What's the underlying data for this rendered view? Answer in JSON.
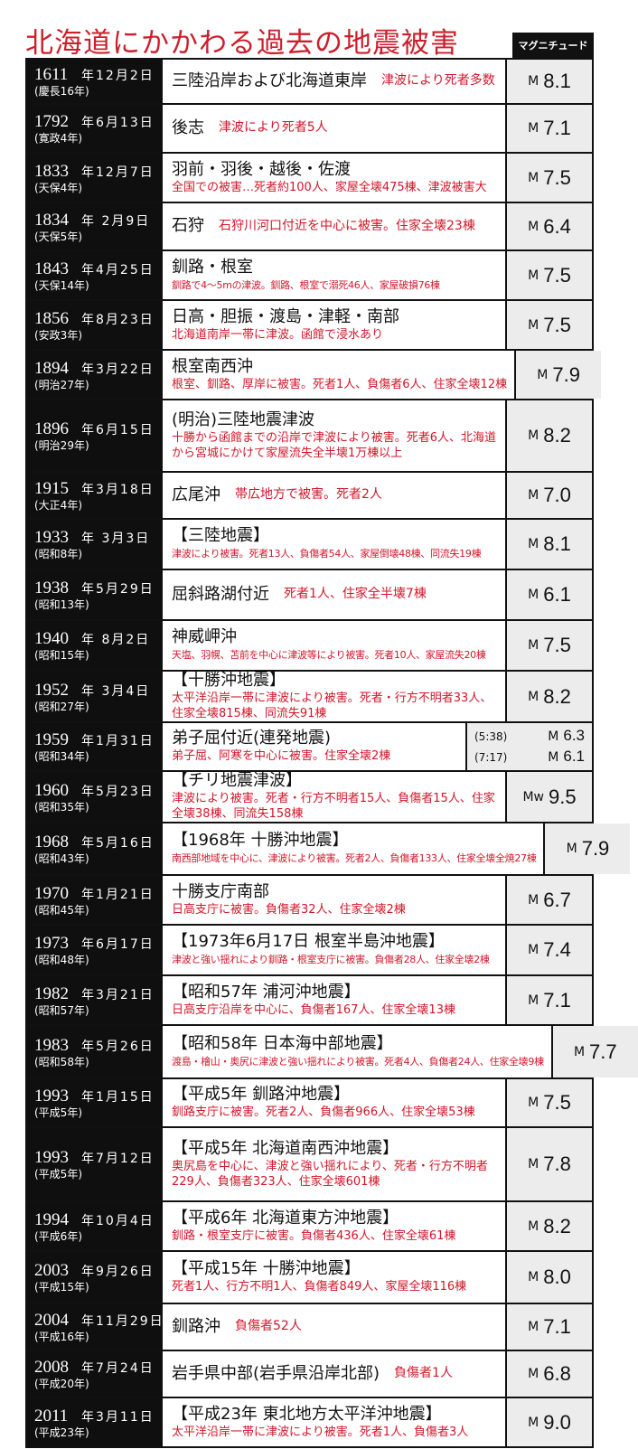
{
  "title": "北海道にかかわる過去の地震被害",
  "magnitude_header": "マグニチュード",
  "rows": [
    {
      "year": "1611",
      "md": "年12月2日",
      "era": "(慶長16年)",
      "location": "三陸沿岸および北海道東岸",
      "damage": "津波により死者多数",
      "m": "M",
      "value": "8.1",
      "h": 48
    },
    {
      "year": "1792",
      "md": "年6月13日",
      "era": "(寛政4年)",
      "location": "後志",
      "damage": "津波により死者5人",
      "m": "M",
      "value": "7.1",
      "h": 52
    },
    {
      "year": "1833",
      "md": "年12月7日",
      "era": "(天保4年)",
      "location": "羽前・羽後・越後・佐渡",
      "damage": "全国での被害…死者約100人、家屋全壊475棟、津波被害大",
      "m": "M",
      "value": "7.5",
      "h": 53
    },
    {
      "year": "1834",
      "md": "年 2月9日",
      "era": "(天保5年)",
      "location": "石狩",
      "damage": "石狩川河口付近を中心に被害。住家全壊23棟",
      "m": "M",
      "value": "6.4",
      "h": 51
    },
    {
      "year": "1843",
      "md": "年4月25日",
      "era": "(天保14年)",
      "location": "釧路・根室",
      "damage": "釧路で4〜5mの津波。釧路、根室で溺死46人、家屋破損76棟",
      "m": "M",
      "value": "7.5",
      "h": 53
    },
    {
      "year": "1856",
      "md": "年8月23日",
      "era": "(安政3年)",
      "location": "日高・胆振・渡島・津軽・南部",
      "damage": "北海道南岸一帯に津波。函館で浸水あり",
      "m": "M",
      "value": "7.5",
      "h": 53
    },
    {
      "year": "1894",
      "md": "年3月22日",
      "era": "(明治27年)",
      "location": "根室南西沖",
      "damage": "根室、釧路、厚岸に被害。死者1人、負傷者6人、住家全壊12棟",
      "m": "M",
      "value": "7.9",
      "h": 53
    },
    {
      "year": "1896",
      "md": "年6月15日",
      "era": "(明治29年)",
      "location": "(明治)三陸地震津波",
      "damage": "十勝から函館までの沿岸で津波により被害。死者6人、北海道から宮城にかけて家屋流失全半壊1万棟以上",
      "m": "M",
      "value": "8.2",
      "h": 78
    },
    {
      "year": "1915",
      "md": "年3月18日",
      "era": "(大正4年)",
      "location": "広尾沖",
      "damage": "帯広地方で被害。死者2人",
      "m": "M",
      "value": "7.0",
      "h": 50
    },
    {
      "year": "1933",
      "md": "年 3月3日",
      "era": "(昭和8年)",
      "location": "【三陸地震】",
      "damage": "津波により被害。死者13人、負傷者54人、家屋倒壊48棟、同流失19棟",
      "m": "M",
      "value": "8.1",
      "h": 54
    },
    {
      "year": "1938",
      "md": "年5月29日",
      "era": "(昭和13年)",
      "location": "屈斜路湖付近",
      "damage": "死者1人、住家全半壊7棟",
      "m": "M",
      "value": "6.1",
      "h": 54
    },
    {
      "year": "1940",
      "md": "年 8月2日",
      "era": "(昭和15年)",
      "location": "神威岬沖",
      "damage": "天塩、羽幌、苫前を中心に津波等により被害。死者10人、家屋流失20棟",
      "m": "M",
      "value": "7.5",
      "h": 54
    },
    {
      "year": "1952",
      "md": "年 3月4日",
      "era": "(昭和27年)",
      "location": "【十勝沖地震】",
      "damage": "太平洋沿岸一帯に津波により被害。死者・行方不明者33人、住家全壊815棟、同流失91棟",
      "m": "M",
      "value": "8.2",
      "h": 55
    },
    {
      "year": "1959",
      "md": "年1月31日",
      "era": "(昭和34年)",
      "location": "弟子屈付近(連発地震)",
      "damage": "弟子屈、阿寒を中心に被害。住家全壊2棟",
      "dual": [
        {
          "time": "(5:38)",
          "m": "M",
          "value": "6.3"
        },
        {
          "time": "(7:17)",
          "m": "M",
          "value": "6.1"
        }
      ],
      "h": 52
    },
    {
      "year": "1960",
      "md": "年5月23日",
      "era": "(昭和35年)",
      "location": "【チリ地震津波】",
      "damage": "津波により被害。死者・行方不明者15人、負傷者15人、住家全壊38棟、同流失158棟",
      "m": "Mw",
      "value": "9.5",
      "h": 55
    },
    {
      "year": "1968",
      "md": "年5月16日",
      "era": "(昭和43年)",
      "location": "【1968年 十勝沖地震】",
      "damage": "南西部地域を中心に、津波により被害。死者2人、負傷者133人、住家全壊全焼27棟",
      "m": "M",
      "value": "7.9",
      "h": 56
    },
    {
      "year": "1970",
      "md": "年1月21日",
      "era": "(昭和45年)",
      "location": "十勝支庁南部",
      "damage": "日高支庁に被害。負傷者32人、住家全壊2棟",
      "m": "M",
      "value": "6.7",
      "h": 53
    },
    {
      "year": "1973",
      "md": "年6月17日",
      "era": "(昭和48年)",
      "location": "【1973年6月17日 根室半島沖地震】",
      "damage": "津波と強い揺れにより釧路・根室支庁に被害。負傷者28人、住家全壊2棟",
      "m": "M",
      "value": "7.4",
      "h": 54
    },
    {
      "year": "1982",
      "md": "年3月21日",
      "era": "(昭和57年)",
      "location": "【昭和57年 浦河沖地震】",
      "damage": "日高支庁沿岸を中心に、負傷者167人、住家全壊13棟",
      "m": "M",
      "value": "7.1",
      "h": 53
    },
    {
      "year": "1983",
      "md": "年5月26日",
      "era": "(昭和58年)",
      "location": "【昭和58年 日本海中部地震】",
      "damage": "渡島・檜山・奥尻に津波と強い揺れにより被害。死者4人、負傷者24人、住家全壊9棟",
      "m": "M",
      "value": "7.7",
      "h": 57
    },
    {
      "year": "1993",
      "md": "年1月15日",
      "era": "(平成5年)",
      "location": "【平成5年 釧路沖地震】",
      "damage": "釧路支庁に被害。死者2人、負傷者966人、住家全壊53棟",
      "m": "M",
      "value": "7.5",
      "h": 52
    },
    {
      "year": "1993",
      "md": "年7月12日",
      "era": "(平成5年)",
      "location": "【平成5年 北海道南西沖地震】",
      "damage": "奥尻島を中心に、津波と強い揺れにより、死者・行方不明者229人、負傷者323人、住家全壊601棟",
      "m": "M",
      "value": "7.8",
      "h": 80
    },
    {
      "year": "1994",
      "md": "年10月4日",
      "era": "(平成6年)",
      "location": "【平成6年 北海道東方沖地震】",
      "damage": "釧路・根室支庁に被害。負傷者436人、住家全壊61棟",
      "m": "M",
      "value": "8.2",
      "h": 53
    },
    {
      "year": "2003",
      "md": "年9月26日",
      "era": "(平成15年)",
      "location": "【平成15年 十勝沖地震】",
      "damage": "死者1人、行方不明1人、負傷者849人、家屋全壊116棟",
      "m": "M",
      "value": "8.0",
      "h": 56
    },
    {
      "year": "2004",
      "md": "年11月29日",
      "era": "(平成16年)",
      "location": "釧路沖",
      "damage": "負傷者52人",
      "m": "M",
      "value": "7.1",
      "h": 50
    },
    {
      "year": "2008",
      "md": "年7月24日",
      "era": "(平成20年)",
      "location": "岩手県中部(岩手県沿岸北部)",
      "damage": "負傷者1人",
      "m": "M",
      "value": "6.8",
      "h": 50
    },
    {
      "year": "2011",
      "md": "年3月11日",
      "era": "(平成23年)",
      "location": "【平成23年 東北地方太平洋沖地震】",
      "damage": "太平洋沿岸一帯に津波により被害。死者1人、負傷者3人",
      "m": "M",
      "value": "9.0",
      "h": 51
    }
  ]
}
